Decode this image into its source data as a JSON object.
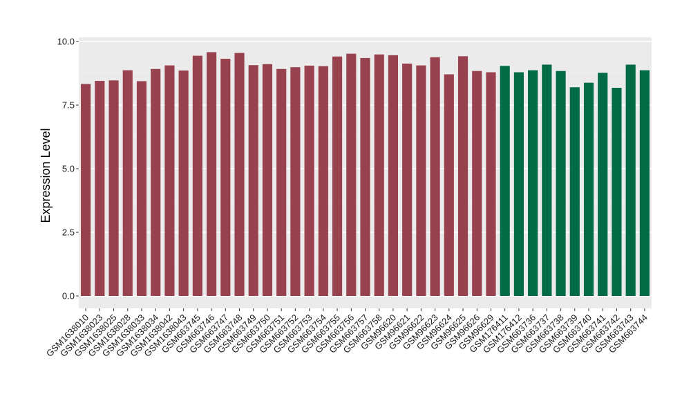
{
  "chart_data": {
    "type": "bar",
    "ylabel": "Expression Level",
    "xlabel": "",
    "ylim": [
      -0.4,
      10.0
    ],
    "yticks": [
      0.0,
      2.5,
      5.0,
      7.5,
      10.0
    ],
    "ytick_labels": [
      "0.0",
      "2.5",
      "5.0",
      "7.5",
      "10.0"
    ],
    "grid": true,
    "panel_background": "#ebebeb",
    "categories": [
      "GSM1638010",
      "GSM1638023",
      "GSM1638025",
      "GSM1638028",
      "GSM1638033",
      "GSM1638034",
      "GSM1638042",
      "GSM1638043",
      "GSM663745",
      "GSM663746",
      "GSM663747",
      "GSM663748",
      "GSM663749",
      "GSM663750",
      "GSM663751",
      "GSM663752",
      "GSM663753",
      "GSM663754",
      "GSM663755",
      "GSM663756",
      "GSM663757",
      "GSM663758",
      "GSM96620",
      "GSM96621",
      "GSM96622",
      "GSM96623",
      "GSM96624",
      "GSM96625",
      "GSM96626",
      "GSM96629",
      "GSM176411",
      "GSM176412",
      "GSM663736",
      "GSM663737",
      "GSM663738",
      "GSM663739",
      "GSM663740",
      "GSM663741",
      "GSM663742",
      "GSM663743",
      "GSM663744"
    ],
    "values": [
      8.33,
      8.45,
      8.47,
      8.87,
      8.44,
      8.92,
      9.06,
      8.86,
      9.44,
      9.58,
      9.32,
      9.55,
      9.07,
      9.11,
      8.92,
      8.99,
      9.05,
      9.03,
      9.41,
      9.52,
      9.35,
      9.49,
      9.46,
      9.13,
      9.06,
      9.38,
      8.71,
      9.42,
      8.84,
      8.79,
      9.04,
      8.79,
      8.87,
      9.09,
      8.84,
      8.2,
      8.38,
      8.77,
      8.18,
      9.09,
      8.87
    ],
    "bar_colors": [
      "#99424f",
      "#99424f",
      "#99424f",
      "#99424f",
      "#99424f",
      "#99424f",
      "#99424f",
      "#99424f",
      "#99424f",
      "#99424f",
      "#99424f",
      "#99424f",
      "#99424f",
      "#99424f",
      "#99424f",
      "#99424f",
      "#99424f",
      "#99424f",
      "#99424f",
      "#99424f",
      "#99424f",
      "#99424f",
      "#99424f",
      "#99424f",
      "#99424f",
      "#99424f",
      "#99424f",
      "#99424f",
      "#99424f",
      "#99424f",
      "#006b44",
      "#006b44",
      "#006b44",
      "#006b44",
      "#006b44",
      "#006b44",
      "#006b44",
      "#006b44",
      "#006b44",
      "#006b44",
      "#006b44"
    ]
  }
}
